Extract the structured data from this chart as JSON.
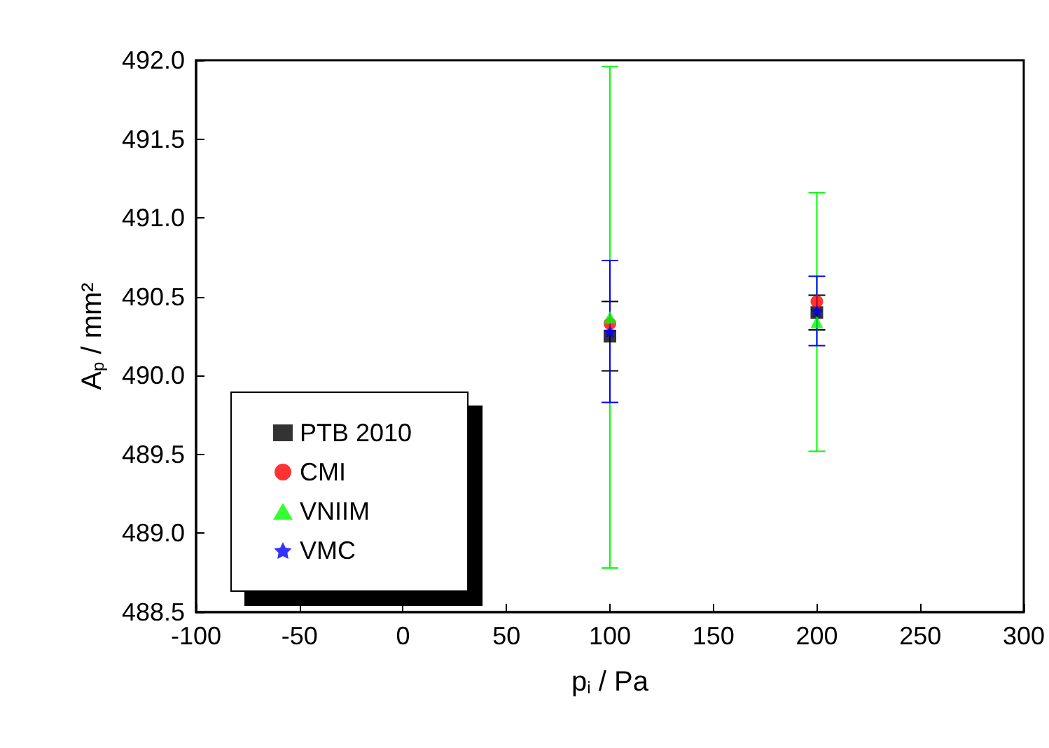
{
  "chart_data": {
    "type": "scatter",
    "xlabel": "p$_{i}$ / Pa",
    "ylabel": "A$_{p}$ / mm²",
    "x": [
      100,
      200
    ],
    "series": [
      {
        "name": "PTB 2010",
        "color": "#000000",
        "marker": "square",
        "values": [
          490.25,
          490.4
        ],
        "errors": [
          0.22,
          0.11
        ]
      },
      {
        "name": "CMI",
        "color": "#ff0000",
        "marker": "circle",
        "values": [
          490.33,
          490.47
        ],
        "errors": [
          null,
          null
        ]
      },
      {
        "name": "VNIIM",
        "color": "#00ff00",
        "marker": "triangle",
        "values": [
          490.37,
          490.34
        ],
        "errors": [
          1.59,
          0.82
        ]
      },
      {
        "name": "VMC",
        "color": "#0000ff",
        "marker": "star",
        "values": [
          490.28,
          490.41
        ],
        "errors": [
          0.45,
          0.22
        ]
      }
    ],
    "xlim": [
      -100,
      300
    ],
    "xticks": [
      -100,
      -50,
      0,
      50,
      100,
      150,
      200,
      250,
      300
    ],
    "ylim": [
      488.5,
      492
    ],
    "yticks": [
      {
        "value": 488.5,
        "label": "488.5"
      },
      {
        "value": 489,
        "label": "489.0"
      },
      {
        "value": 489.5,
        "label": "489.5"
      },
      {
        "value": 490,
        "label": "490.0"
      },
      {
        "value": 490.5,
        "label": "490.5"
      },
      {
        "value": 491,
        "label": "491.0"
      },
      {
        "value": 491.5,
        "label": "491.5"
      },
      {
        "value": 492,
        "label": "492.0"
      }
    ],
    "grid": false,
    "legend": "bottom left"
  }
}
